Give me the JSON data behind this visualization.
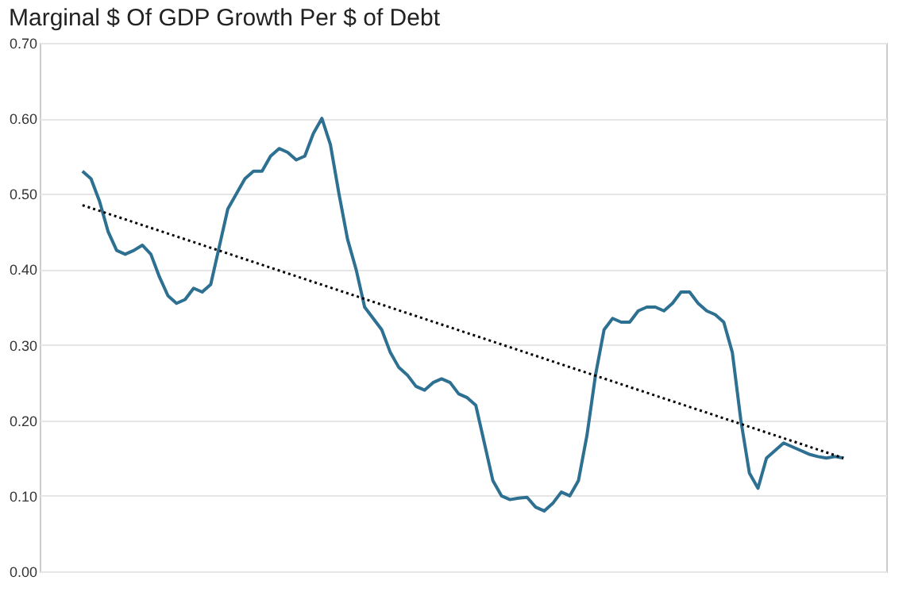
{
  "chart_data": {
    "type": "line",
    "title": "Marginal $ Of GDP Growth Per $ of Debt",
    "categories": [
      null,
      null,
      null,
      null,
      null,
      null,
      null,
      null,
      null,
      null,
      null,
      null,
      null,
      null,
      null,
      null,
      null,
      null,
      null,
      null,
      null,
      null,
      null,
      null,
      null,
      null,
      null,
      null,
      null,
      null,
      null,
      null,
      null,
      null,
      null,
      null,
      null,
      null,
      null,
      null,
      null,
      null,
      null,
      null,
      null,
      null,
      null,
      null,
      null,
      null,
      null,
      null,
      null,
      null,
      null,
      null,
      null,
      null,
      null,
      null,
      null,
      null,
      null,
      null,
      null,
      null,
      null,
      null,
      null,
      null,
      null,
      null,
      null,
      null,
      null,
      null,
      null,
      null,
      null,
      null,
      null,
      null,
      null,
      null,
      null,
      null,
      null,
      null,
      null,
      null
    ],
    "ylim": [
      0,
      0.7
    ],
    "yticks": [
      {
        "value": 0,
        "label": "0.00"
      },
      {
        "value": 0.1,
        "label": "0.10"
      },
      {
        "value": 0.2,
        "label": "0.20"
      },
      {
        "value": 0.3,
        "label": "0.30"
      },
      {
        "value": 0.4,
        "label": "0.40"
      },
      {
        "value": 0.5,
        "label": "0.50"
      },
      {
        "value": 0.6,
        "label": "0.60"
      },
      {
        "value": 0.7,
        "label": "0.70"
      }
    ],
    "grid": "y",
    "tick_labels": "y",
    "series": [
      {
        "color": "#2d7091",
        "line_style": "solid",
        "values": [
          0.53,
          0.52,
          0.49,
          0.45,
          0.425,
          0.42,
          0.425,
          0.432,
          0.42,
          0.39,
          0.365,
          0.355,
          0.36,
          0.375,
          0.37,
          0.38,
          0.43,
          0.48,
          0.5,
          0.52,
          0.53,
          0.53,
          0.55,
          0.56,
          0.555,
          0.545,
          0.55,
          0.58,
          0.6,
          0.565,
          0.5,
          0.44,
          0.4,
          0.35,
          0.335,
          0.32,
          0.29,
          0.27,
          0.26,
          0.245,
          0.24,
          0.25,
          0.255,
          0.25,
          0.235,
          0.23,
          0.22,
          0.17,
          0.12,
          0.1,
          0.095,
          0.097,
          0.098,
          0.085,
          0.08,
          0.09,
          0.105,
          0.1,
          0.12,
          0.18,
          0.26,
          0.32,
          0.335,
          0.33,
          0.33,
          0.345,
          0.35,
          0.35,
          0.345,
          0.355,
          0.37,
          0.37,
          0.355,
          0.345,
          0.34,
          0.33,
          0.29,
          0.2,
          0.13,
          0.11,
          0.15,
          0.16,
          0.17,
          0.165,
          0.16,
          0.155,
          0.152,
          0.15,
          0.152,
          0.15
        ]
      },
      {
        "color": "#000000",
        "line_style": "dotted",
        "values": [
          0.485,
          null,
          null,
          null,
          null,
          null,
          null,
          null,
          null,
          null,
          null,
          null,
          null,
          null,
          null,
          null,
          null,
          null,
          null,
          null,
          null,
          null,
          null,
          null,
          null,
          null,
          null,
          null,
          null,
          null,
          null,
          null,
          null,
          null,
          null,
          null,
          null,
          null,
          null,
          null,
          null,
          null,
          null,
          null,
          null,
          null,
          null,
          null,
          null,
          null,
          null,
          null,
          null,
          null,
          null,
          null,
          null,
          null,
          null,
          null,
          null,
          null,
          null,
          null,
          null,
          null,
          null,
          null,
          null,
          null,
          null,
          null,
          null,
          null,
          null,
          null,
          null,
          null,
          null,
          null,
          null,
          null,
          null,
          null,
          null,
          null,
          null,
          null,
          null,
          0.15
        ]
      }
    ]
  }
}
